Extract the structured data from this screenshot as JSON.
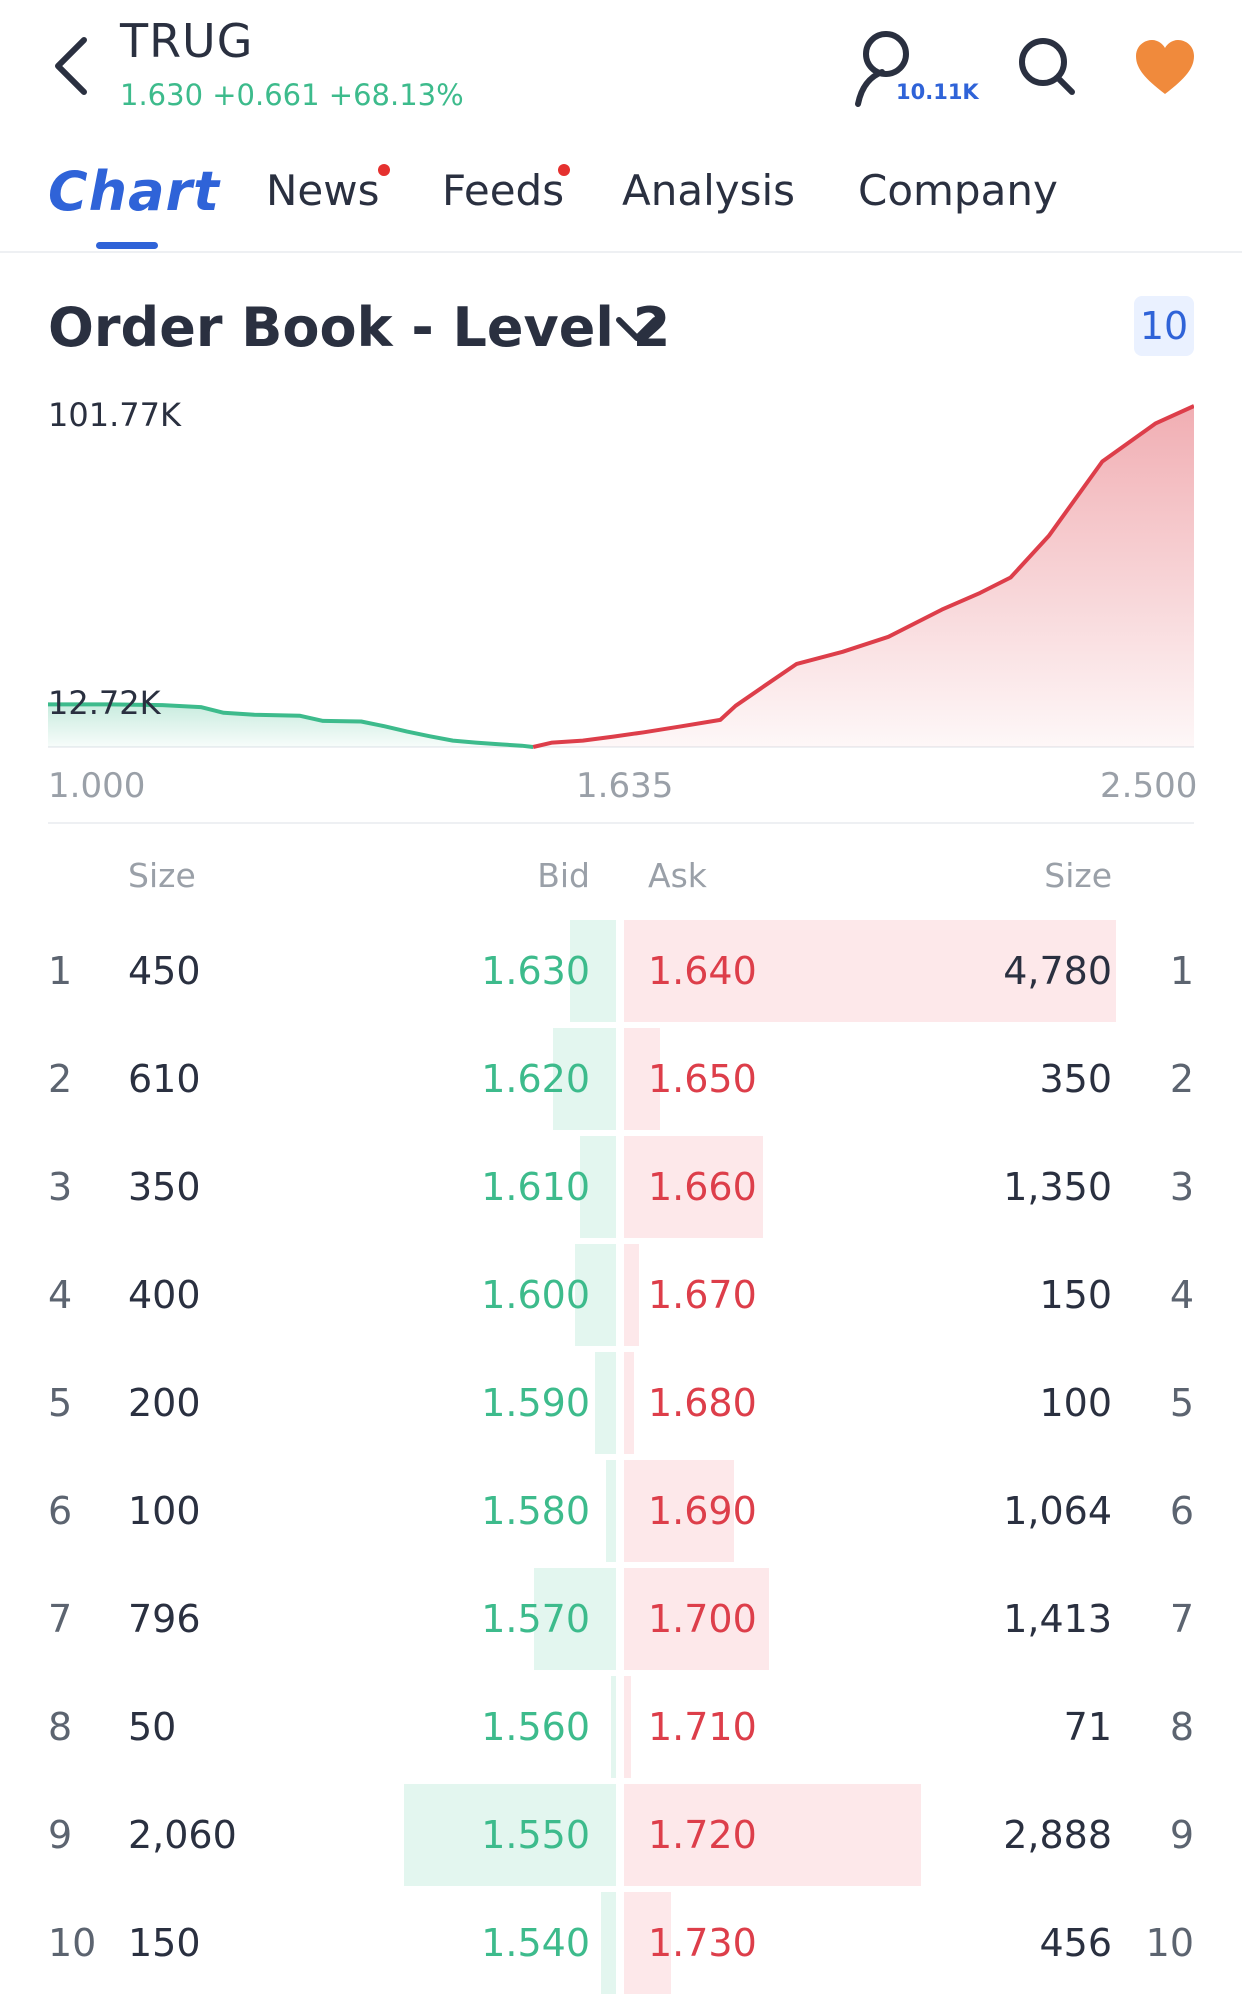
{
  "header": {
    "ticker": "TRUG",
    "quote": "1.630 +0.661 +68.13%",
    "follower_count": "10.11K"
  },
  "tabs": [
    {
      "label": "Chart",
      "active": true
    },
    {
      "label": "News",
      "notification_dot": true
    },
    {
      "label": "Feeds",
      "notification_dot": true
    },
    {
      "label": "Analysis"
    },
    {
      "label": "Company"
    }
  ],
  "order_book": {
    "title": "Order Book - Level 2",
    "depth": "10",
    "columns": {
      "bid_size": "Size",
      "bid": "Bid",
      "ask": "Ask",
      "ask_size": "Size"
    },
    "rows": [
      {
        "level": "1",
        "bid_size": "450",
        "bid": "1.630",
        "ask": "1.640",
        "ask_size": "4,780"
      },
      {
        "level": "2",
        "bid_size": "610",
        "bid": "1.620",
        "ask": "1.650",
        "ask_size": "350"
      },
      {
        "level": "3",
        "bid_size": "350",
        "bid": "1.610",
        "ask": "1.660",
        "ask_size": "1,350"
      },
      {
        "level": "4",
        "bid_size": "400",
        "bid": "1.600",
        "ask": "1.670",
        "ask_size": "150"
      },
      {
        "level": "5",
        "bid_size": "200",
        "bid": "1.590",
        "ask": "1.680",
        "ask_size": "100"
      },
      {
        "level": "6",
        "bid_size": "100",
        "bid": "1.580",
        "ask": "1.690",
        "ask_size": "1,064"
      },
      {
        "level": "7",
        "bid_size": "796",
        "bid": "1.570",
        "ask": "1.700",
        "ask_size": "1,413"
      },
      {
        "level": "8",
        "bid_size": "50",
        "bid": "1.560",
        "ask": "1.710",
        "ask_size": "71"
      },
      {
        "level": "9",
        "bid_size": "2,060",
        "bid": "1.550",
        "ask": "1.720",
        "ask_size": "2,888"
      },
      {
        "level": "10",
        "bid_size": "150",
        "bid": "1.540",
        "ask": "1.730",
        "ask_size": "456"
      }
    ]
  },
  "chart_data": {
    "type": "area",
    "y_max_label": "101.77K",
    "y_min_label": "12.72K",
    "x_ticks": [
      "1.000",
      "1.635",
      "2.500"
    ],
    "xlim": [
      1.0,
      2.5
    ],
    "ylim": [
      0,
      101770
    ],
    "grid": false,
    "series": [
      {
        "side": "bid",
        "color": "#3dbb8c",
        "x": [
          1.0,
          1.08,
          1.15,
          1.2,
          1.23,
          1.27,
          1.3,
          1.33,
          1.36,
          1.41,
          1.44,
          1.47,
          1.5,
          1.53,
          1.56,
          1.59,
          1.62,
          1.635
        ],
        "y": [
          12720,
          12720,
          12500,
          11900,
          10200,
          9600,
          9500,
          9300,
          7800,
          7600,
          6200,
          4600,
          3200,
          1900,
          1300,
          800,
          400,
          0
        ]
      },
      {
        "side": "ask",
        "color": "#dd3e4a",
        "x": [
          1.635,
          1.66,
          1.7,
          1.74,
          1.78,
          1.83,
          1.88,
          1.9,
          1.94,
          1.98,
          2.04,
          2.1,
          2.17,
          2.22,
          2.26,
          2.31,
          2.38,
          2.45,
          2.5
        ],
        "y": [
          0,
          1300,
          1900,
          3100,
          4400,
          6200,
          8100,
          12300,
          18600,
          24800,
          28400,
          32900,
          41000,
          46000,
          50600,
          63000,
          85200,
          96600,
          101770
        ]
      }
    ]
  },
  "colors": {
    "accent": "#2f63d8",
    "bid": "#3dbb8c",
    "ask": "#dd3e4a",
    "notification": "#e5312f",
    "favorite": "#f08a3c"
  },
  "icons": {
    "back": "chevron-left-icon",
    "follow": "person-icon",
    "search": "search-icon",
    "favorite": "heart-icon",
    "dropdown": "chevron-down-icon"
  }
}
